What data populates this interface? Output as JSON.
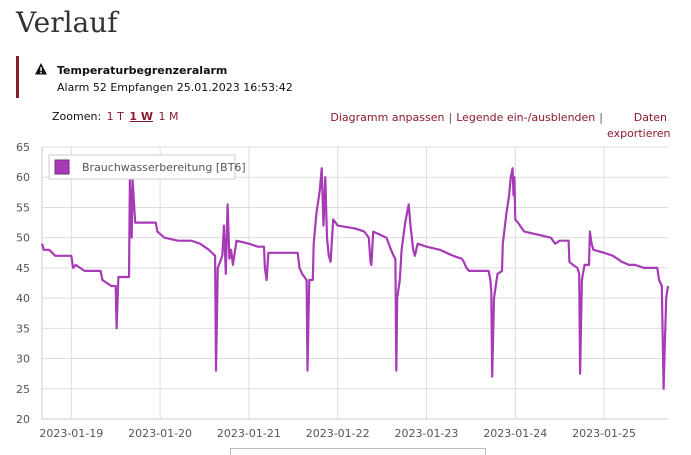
{
  "page": {
    "title": "Verlauf"
  },
  "alarm": {
    "title": "Temperaturbegrenzeralarm",
    "detail": "Alarm 52 Empfangen 25.01.2023 16:53:42"
  },
  "zoom": {
    "label": "Zoomen:",
    "options": [
      "1 T",
      "1 W",
      "1 M"
    ],
    "active": "1 W"
  },
  "actions": {
    "adjust": "Diagramm anpassen",
    "legend": "Legende ein-/ausblenden",
    "export": "Daten exportieren",
    "separator": "|"
  },
  "chart_data": {
    "type": "line",
    "ylim": [
      20,
      65
    ],
    "y_ticks": [
      "65",
      "60",
      "55",
      "50",
      "45",
      "40",
      "35",
      "30",
      "25",
      "20"
    ],
    "x_ticks": [
      "2023-01-19",
      "2023-01-20",
      "2023-01-21",
      "2023-01-22",
      "2023-01-23",
      "2023-01-24",
      "2023-01-25"
    ],
    "x_range_days": [
      -0.33,
      6.72
    ],
    "grid": true,
    "legend_position": "top-left",
    "series": [
      {
        "name": "Brauchwasserbereitung [BT6]",
        "color": "#a63bb5",
        "points": [
          [
            -0.33,
            49
          ],
          [
            -0.31,
            48
          ],
          [
            -0.25,
            48
          ],
          [
            -0.18,
            47
          ],
          [
            -0.1,
            47
          ],
          [
            0.0,
            47
          ],
          [
            0.02,
            45
          ],
          [
            0.05,
            45.5
          ],
          [
            0.15,
            44.5
          ],
          [
            0.33,
            44.5
          ],
          [
            0.35,
            43
          ],
          [
            0.45,
            42
          ],
          [
            0.5,
            42
          ],
          [
            0.51,
            35
          ],
          [
            0.53,
            43.5
          ],
          [
            0.65,
            43.5
          ],
          [
            0.66,
            59.5
          ],
          [
            0.68,
            50
          ],
          [
            0.69,
            59.5
          ],
          [
            0.72,
            52.5
          ],
          [
            0.95,
            52.5
          ],
          [
            0.97,
            51
          ],
          [
            1.05,
            50
          ],
          [
            1.2,
            49.5
          ],
          [
            1.35,
            49.5
          ],
          [
            1.45,
            49
          ],
          [
            1.55,
            48
          ],
          [
            1.62,
            47
          ],
          [
            1.63,
            28
          ],
          [
            1.65,
            45
          ],
          [
            1.7,
            47
          ],
          [
            1.72,
            52
          ],
          [
            1.74,
            44
          ],
          [
            1.76,
            55.5
          ],
          [
            1.78,
            46.5
          ],
          [
            1.8,
            48
          ],
          [
            1.82,
            45.5
          ],
          [
            1.86,
            49.5
          ],
          [
            2.0,
            49
          ],
          [
            2.1,
            48.5
          ],
          [
            2.17,
            48.5
          ],
          [
            2.18,
            45
          ],
          [
            2.2,
            43
          ],
          [
            2.22,
            47.5
          ],
          [
            2.3,
            47.5
          ],
          [
            2.55,
            47.5
          ],
          [
            2.57,
            45
          ],
          [
            2.6,
            44
          ],
          [
            2.65,
            43
          ],
          [
            2.66,
            28
          ],
          [
            2.67,
            36
          ],
          [
            2.68,
            43
          ],
          [
            2.72,
            43
          ],
          [
            2.73,
            49
          ],
          [
            2.76,
            54
          ],
          [
            2.78,
            56
          ],
          [
            2.8,
            58
          ],
          [
            2.82,
            61.5
          ],
          [
            2.84,
            52
          ],
          [
            2.86,
            60
          ],
          [
            2.88,
            50
          ],
          [
            2.9,
            47
          ],
          [
            2.92,
            46
          ],
          [
            2.95,
            53
          ],
          [
            3.0,
            52
          ],
          [
            3.2,
            51.5
          ],
          [
            3.3,
            51
          ],
          [
            3.35,
            50
          ],
          [
            3.37,
            46
          ],
          [
            3.38,
            45.5
          ],
          [
            3.4,
            51
          ],
          [
            3.55,
            50
          ],
          [
            3.6,
            48
          ],
          [
            3.63,
            47
          ],
          [
            3.65,
            46.5
          ],
          [
            3.66,
            28
          ],
          [
            3.67,
            40
          ],
          [
            3.7,
            43
          ],
          [
            3.72,
            48
          ],
          [
            3.76,
            52.5
          ],
          [
            3.8,
            55.5
          ],
          [
            3.82,
            52
          ],
          [
            3.85,
            48
          ],
          [
            3.87,
            47
          ],
          [
            3.9,
            49
          ],
          [
            4.0,
            48.5
          ],
          [
            4.15,
            48
          ],
          [
            4.3,
            47
          ],
          [
            4.4,
            46.5
          ],
          [
            4.42,
            46
          ],
          [
            4.45,
            45
          ],
          [
            4.48,
            44.5
          ],
          [
            4.7,
            44.5
          ],
          [
            4.72,
            43
          ],
          [
            4.73,
            41
          ],
          [
            4.74,
            27
          ],
          [
            4.76,
            40
          ],
          [
            4.8,
            44
          ],
          [
            4.85,
            44.5
          ],
          [
            4.86,
            49
          ],
          [
            4.9,
            54
          ],
          [
            4.93,
            57
          ],
          [
            4.95,
            60
          ],
          [
            4.97,
            61.5
          ],
          [
            4.98,
            57
          ],
          [
            4.99,
            60
          ],
          [
            5.0,
            53
          ],
          [
            5.03,
            52.5
          ],
          [
            5.1,
            51
          ],
          [
            5.25,
            50.5
          ],
          [
            5.4,
            50
          ],
          [
            5.45,
            49
          ],
          [
            5.5,
            49.5
          ],
          [
            5.6,
            49.5
          ],
          [
            5.61,
            46
          ],
          [
            5.65,
            45.5
          ],
          [
            5.7,
            45
          ],
          [
            5.72,
            44
          ],
          [
            5.73,
            27.5
          ],
          [
            5.75,
            43
          ],
          [
            5.78,
            45.5
          ],
          [
            5.83,
            45.5
          ],
          [
            5.84,
            51
          ],
          [
            5.86,
            49
          ],
          [
            5.88,
            48
          ],
          [
            6.0,
            47.5
          ],
          [
            6.1,
            47
          ],
          [
            6.2,
            46
          ],
          [
            6.28,
            45.5
          ],
          [
            6.35,
            45.5
          ],
          [
            6.45,
            45
          ],
          [
            6.6,
            45
          ],
          [
            6.62,
            43
          ],
          [
            6.65,
            42
          ],
          [
            6.67,
            25
          ],
          [
            6.68,
            30
          ],
          [
            6.7,
            40
          ],
          [
            6.72,
            42
          ]
        ]
      }
    ]
  },
  "colors": {
    "accent": "#8b1a2b",
    "series": "#a63bb5",
    "grid": "#dddddd"
  }
}
